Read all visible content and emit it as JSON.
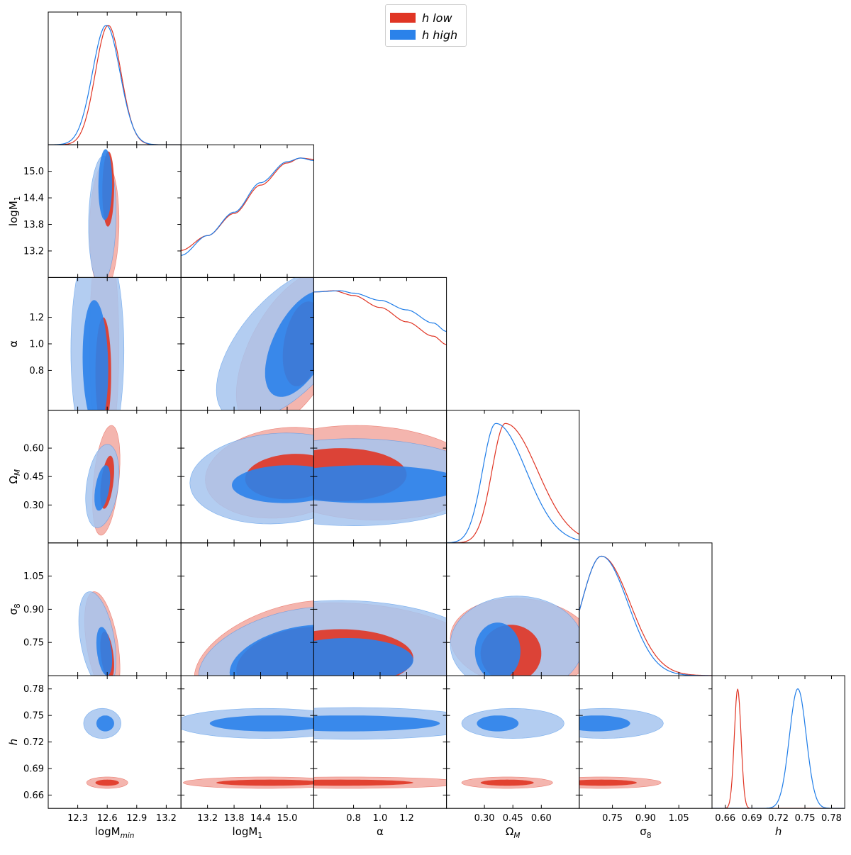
{
  "chart_data": {
    "type": "corner",
    "parameters": [
      {
        "key": "logMmin",
        "label": "logM_min",
        "range": [
          12.0,
          13.35
        ],
        "ticks": [
          12.3,
          12.6,
          12.9,
          13.2
        ],
        "tick_labels": [
          "12.3",
          "12.6",
          "12.9",
          "13.2"
        ]
      },
      {
        "key": "logM1",
        "label": "logM_1",
        "range": [
          12.6,
          15.6
        ],
        "ticks": [
          13.2,
          13.8,
          14.4,
          15.0
        ],
        "tick_labels": [
          "13.2",
          "13.8",
          "14.4",
          "15.0"
        ]
      },
      {
        "key": "alpha",
        "label": "α",
        "range": [
          0.5,
          1.5
        ],
        "ticks": [
          0.8,
          1.0,
          1.2
        ],
        "tick_labels": [
          "0.8",
          "1.0",
          "1.2"
        ]
      },
      {
        "key": "OmegaM",
        "label": "Ω_M",
        "range": [
          0.1,
          0.8
        ],
        "ticks": [
          0.3,
          0.45,
          0.6
        ],
        "tick_labels": [
          "0.30",
          "0.45",
          "0.60"
        ]
      },
      {
        "key": "sigma8",
        "label": "σ_8",
        "range": [
          0.6,
          1.2
        ],
        "ticks": [
          0.75,
          0.9,
          1.05
        ],
        "tick_labels": [
          "0.75",
          "0.90",
          "1.05"
        ]
      },
      {
        "key": "h",
        "label": "h",
        "range": [
          0.645,
          0.795
        ],
        "ticks": [
          0.66,
          0.69,
          0.72,
          0.75,
          0.78
        ],
        "tick_labels": [
          "0.66",
          "0.69",
          "0.72",
          "0.75",
          "0.78"
        ]
      }
    ],
    "series": [
      {
        "name": "h low",
        "color": "#e03524",
        "outer_fill": "#f2a8a0",
        "inner_fill": "#e03524",
        "marginals": [
          {
            "type": "gauss",
            "mu": 12.61,
            "sigma": 0.13
          },
          {
            "type": "rise",
            "x": [
              12.6,
              13.2,
              13.8,
              14.4,
              15.0,
              15.3,
              15.6
            ],
            "y": [
              0.22,
              0.34,
              0.52,
              0.75,
              0.93,
              0.97,
              0.96
            ]
          },
          {
            "type": "rise",
            "x": [
              0.5,
              0.65,
              0.8,
              1.0,
              1.2,
              1.4,
              1.5
            ],
            "y": [
              0.99,
              1.0,
              0.96,
              0.86,
              0.74,
              0.62,
              0.55
            ]
          },
          {
            "type": "skew",
            "mu": 0.41,
            "sl": 0.07,
            "sr": 0.17,
            "tail": 0.12
          },
          {
            "type": "skew",
            "mu": 0.7,
            "sl": 0.09,
            "sr": 0.13,
            "tail": 0
          },
          {
            "type": "gauss",
            "mu": 0.674,
            "sigma": 0.0038
          }
        ],
        "contours": [
          {
            "pair": [
              "logMmin",
              "logM1"
            ],
            "outer": [
              12.57,
              13.75,
              0.15,
              1.45,
              0.08
            ],
            "inner": [
              12.61,
              14.6,
              0.06,
              0.85,
              0.05
            ]
          },
          {
            "pair": [
              "logMmin",
              "alpha"
            ],
            "outer": [
              12.57,
              1.0,
              0.15,
              0.85,
              -0.02
            ],
            "inner": [
              12.56,
              0.78,
              0.08,
              0.42,
              0.0
            ]
          },
          {
            "pair": [
              "logMmin",
              "OmegaM"
            ],
            "outer": [
              12.59,
              0.43,
              0.14,
              0.29,
              0.38
            ],
            "inner": [
              12.6,
              0.42,
              0.07,
              0.14,
              0.45
            ]
          },
          {
            "pair": [
              "logMmin",
              "sigma8"
            ],
            "outer": [
              12.55,
              0.74,
              0.18,
              0.24,
              -0.45
            ],
            "inner": [
              12.6,
              0.69,
              0.07,
              0.11,
              -0.4
            ]
          },
          {
            "pair": [
              "logMmin",
              "h"
            ],
            "outer": [
              12.6,
              0.674,
              0.21,
              0.0065,
              0.0
            ],
            "inner": [
              12.6,
              0.674,
              0.12,
              0.0035,
              0.0
            ]
          },
          {
            "pair": [
              "logM1",
              "alpha"
            ],
            "outer": [
              15.1,
              0.95,
              1.25,
              0.6,
              0.55
            ],
            "inner": [
              15.35,
              1.0,
              0.45,
              0.32,
              0.3
            ]
          },
          {
            "pair": [
              "logM1",
              "OmegaM"
            ],
            "outer": [
              14.9,
              0.47,
              1.75,
              0.24,
              0.15
            ],
            "inner": [
              15.1,
              0.45,
              1.05,
              0.12,
              0.1
            ]
          },
          {
            "pair": [
              "logM1",
              "sigma8"
            ],
            "outer": [
              15.0,
              0.69,
              2.1,
              0.25,
              0.4
            ],
            "inner": [
              15.2,
              0.67,
              1.35,
              0.15,
              0.3
            ]
          },
          {
            "pair": [
              "logM1",
              "h"
            ],
            "outer": [
              14.5,
              0.674,
              1.85,
              0.0065,
              0.0
            ],
            "inner": [
              14.6,
              0.674,
              1.2,
              0.0035,
              0.0
            ]
          },
          {
            "pair": [
              "alpha",
              "OmegaM"
            ],
            "outer": [
              0.9,
              0.47,
              0.85,
              0.25,
              -0.1
            ],
            "inner": [
              0.7,
              0.46,
              0.5,
              0.14,
              0.0
            ]
          },
          {
            "pair": [
              "alpha",
              "sigma8"
            ],
            "outer": [
              0.8,
              0.7,
              1.0,
              0.23,
              -0.15
            ],
            "inner": [
              0.7,
              0.68,
              0.55,
              0.13,
              0.0
            ]
          },
          {
            "pair": [
              "alpha",
              "h"
            ],
            "outer": [
              0.75,
              0.674,
              0.9,
              0.0065,
              0.0
            ],
            "inner": [
              0.7,
              0.674,
              0.55,
              0.0035,
              0.0
            ]
          },
          {
            "pair": [
              "OmegaM",
              "sigma8"
            ],
            "outer": [
              0.5,
              0.75,
              0.38,
              0.2,
              -0.1
            ],
            "inner": [
              0.44,
              0.7,
              0.16,
              0.13,
              0.0
            ]
          },
          {
            "pair": [
              "OmegaM",
              "h"
            ],
            "outer": [
              0.42,
              0.674,
              0.24,
              0.0065,
              0.0
            ],
            "inner": [
              0.42,
              0.674,
              0.14,
              0.0035,
              0.0
            ]
          },
          {
            "pair": [
              "sigma8",
              "h"
            ],
            "outer": [
              0.7,
              0.674,
              0.27,
              0.0065,
              0.0
            ],
            "inner": [
              0.7,
              0.674,
              0.16,
              0.0035,
              0.0
            ]
          }
        ]
      },
      {
        "name": "h high",
        "color": "#1f7de8",
        "outer_fill": "#a6c4ee",
        "inner_fill": "#2b82ea",
        "marginals": [
          {
            "type": "gauss",
            "mu": 12.59,
            "sigma": 0.14
          },
          {
            "type": "rise",
            "x": [
              12.6,
              13.2,
              13.8,
              14.4,
              15.0,
              15.3,
              15.6
            ],
            "y": [
              0.18,
              0.34,
              0.53,
              0.77,
              0.94,
              0.97,
              0.95
            ]
          },
          {
            "type": "rise",
            "x": [
              0.5,
              0.7,
              0.8,
              1.0,
              1.2,
              1.4,
              1.5
            ],
            "y": [
              0.99,
              1.0,
              0.98,
              0.92,
              0.84,
              0.73,
              0.66
            ]
          },
          {
            "type": "skew",
            "mu": 0.36,
            "sl": 0.07,
            "sr": 0.16,
            "tail": 0.06
          },
          {
            "type": "skew",
            "mu": 0.7,
            "sl": 0.09,
            "sr": 0.12,
            "tail": 0
          },
          {
            "type": "gauss",
            "mu": 0.742,
            "sigma": 0.0095
          }
        ],
        "contours": [
          {
            "pair": [
              "logMmin",
              "logM1"
            ],
            "outer": [
              12.55,
              13.9,
              0.14,
              1.45,
              0.1
            ],
            "inner": [
              12.58,
              14.7,
              0.07,
              0.8,
              0.05
            ]
          },
          {
            "pair": [
              "logMmin",
              "alpha"
            ],
            "outer": [
              12.5,
              0.95,
              0.27,
              0.88,
              0.0
            ],
            "inner": [
              12.48,
              0.85,
              0.13,
              0.48,
              -0.1
            ]
          },
          {
            "pair": [
              "logMmin",
              "OmegaM"
            ],
            "outer": [
              12.55,
              0.4,
              0.17,
              0.22,
              0.3
            ],
            "inner": [
              12.55,
              0.39,
              0.08,
              0.12,
              0.45
            ]
          },
          {
            "pair": [
              "logMmin",
              "sigma8"
            ],
            "outer": [
              12.5,
              0.76,
              0.19,
              0.22,
              -0.4
            ],
            "inner": [
              12.57,
              0.71,
              0.08,
              0.11,
              -0.35
            ]
          },
          {
            "pair": [
              "logMmin",
              "h"
            ],
            "outer": [
              12.55,
              0.741,
              0.19,
              0.017,
              0.0
            ],
            "inner": [
              12.58,
              0.741,
              0.09,
              0.009,
              0.0
            ]
          },
          {
            "pair": [
              "logM1",
              "alpha"
            ],
            "outer": [
              15.0,
              1.0,
              1.6,
              0.58,
              0.6
            ],
            "inner": [
              15.3,
              1.0,
              0.8,
              0.4,
              0.55
            ]
          },
          {
            "pair": [
              "logM1",
              "OmegaM"
            ],
            "outer": [
              14.8,
              0.44,
              2.0,
              0.24,
              0.1
            ],
            "inner": [
              15.0,
              0.41,
              1.25,
              0.1,
              0.05
            ]
          },
          {
            "pair": [
              "logM1",
              "sigma8"
            ],
            "outer": [
              15.0,
              0.69,
              2.0,
              0.22,
              0.4
            ],
            "inner": [
              15.2,
              0.67,
              1.5,
              0.16,
              0.35
            ]
          },
          {
            "pair": [
              "logM1",
              "h"
            ],
            "outer": [
              14.5,
              0.741,
              2.05,
              0.017,
              0.0
            ],
            "inner": [
              14.6,
              0.741,
              1.35,
              0.009,
              0.0
            ]
          },
          {
            "pair": [
              "alpha",
              "OmegaM"
            ],
            "outer": [
              0.8,
              0.42,
              1.0,
              0.23,
              0.0
            ],
            "inner": [
              0.9,
              0.41,
              0.75,
              0.1,
              0.0
            ]
          },
          {
            "pair": [
              "alpha",
              "sigma8"
            ],
            "outer": [
              0.8,
              0.72,
              1.0,
              0.22,
              -0.1
            ],
            "inner": [
              0.75,
              0.67,
              0.5,
              0.1,
              0.0
            ]
          },
          {
            "pair": [
              "alpha",
              "h"
            ],
            "outer": [
              0.8,
              0.741,
              1.0,
              0.018,
              0.0
            ],
            "inner": [
              0.75,
              0.741,
              0.7,
              0.009,
              0.0
            ]
          },
          {
            "pair": [
              "OmegaM",
              "sigma8"
            ],
            "outer": [
              0.47,
              0.74,
              0.35,
              0.22,
              0.0
            ],
            "inner": [
              0.37,
              0.71,
              0.12,
              0.13,
              0.0
            ]
          },
          {
            "pair": [
              "OmegaM",
              "h"
            ],
            "outer": [
              0.45,
              0.741,
              0.27,
              0.017,
              0.0
            ],
            "inner": [
              0.37,
              0.741,
              0.11,
              0.009,
              0.0
            ]
          },
          {
            "pair": [
              "sigma8",
              "h"
            ],
            "outer": [
              0.71,
              0.741,
              0.27,
              0.017,
              0.0
            ],
            "inner": [
              0.68,
              0.741,
              0.15,
              0.009,
              0.0
            ]
          }
        ]
      }
    ],
    "legend": {
      "placement": "top-center",
      "entries": [
        "h low",
        "h high"
      ]
    }
  }
}
